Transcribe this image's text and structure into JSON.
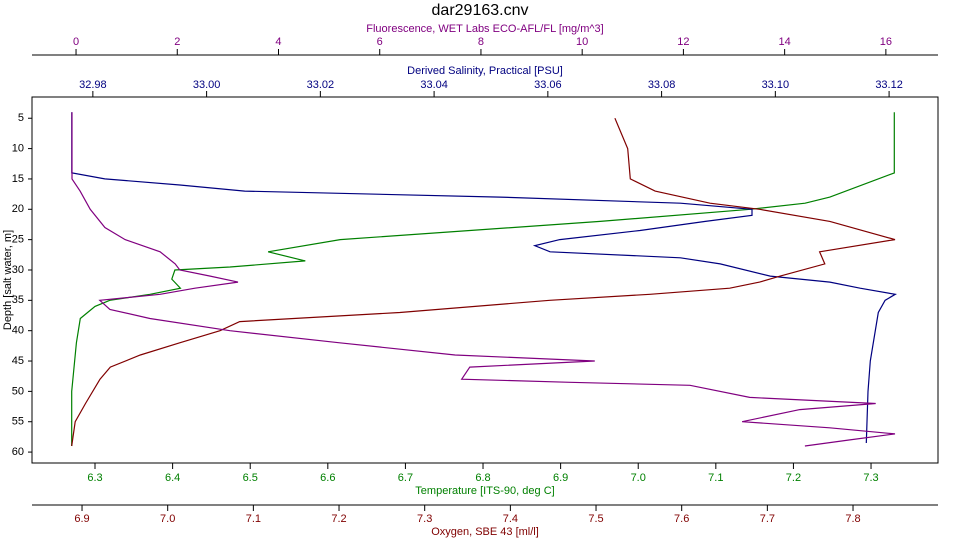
{
  "chart_data": {
    "type": "profile",
    "title": "dar29163.cnv",
    "y_label": "Depth [salt water, m]",
    "ylim": [
      1.5,
      61.8
    ],
    "yticks": [
      5,
      10,
      15,
      20,
      25,
      30,
      35,
      40,
      45,
      50,
      55,
      60
    ],
    "x_axes": [
      {
        "label": "Fluorescence, WET Labs ECO-AFL/FL [mg/m^3]",
        "color": "#800080",
        "position": "top-outer",
        "xlim": [
          -0.87,
          17.03
        ],
        "xticks": [
          0,
          2,
          4,
          6,
          8,
          10,
          12,
          14,
          16
        ]
      },
      {
        "label": "Derived Salinity, Practical [PSU]",
        "color": "#000080",
        "position": "top-inner",
        "xlim": [
          32.9693,
          33.1286
        ],
        "xticks": [
          32.98,
          {
            "value": 33.0,
            "label": "33.00"
          },
          33.02,
          33.04,
          33.06,
          33.08,
          {
            "value": 33.1,
            "label": "33.10"
          },
          33.12
        ]
      },
      {
        "label": "Temperature [ITS-90, deg C]",
        "color": "#008000",
        "position": "bottom-inner",
        "xlim": [
          6.2188,
          7.3863
        ],
        "xticks": [
          6.3,
          6.4,
          6.5,
          6.6,
          6.7,
          6.8,
          6.9,
          {
            "value": 7.0,
            "label": "7.0"
          },
          7.1,
          7.2,
          7.3
        ]
      },
      {
        "label": "Oxygen, SBE 43 [ml/l]",
        "color": "#800000",
        "position": "bottom-outer",
        "xlim": [
          6.8416,
          7.8992
        ],
        "xticks": [
          6.9,
          {
            "value": 7.0,
            "label": "7.0"
          },
          7.1,
          7.2,
          7.3,
          7.4,
          7.5,
          7.6,
          7.7,
          7.8
        ]
      }
    ],
    "series": [
      {
        "axis": 2,
        "color": "#008000",
        "depth": [
          4,
          14,
          18,
          19,
          20,
          22,
          25,
          27,
          28.5,
          29.5,
          30,
          31.5,
          33,
          34,
          35,
          36,
          38,
          42,
          50,
          59
        ],
        "values": [
          7.33,
          7.33,
          7.247,
          7.215,
          7.144,
          6.951,
          6.616,
          6.523,
          6.571,
          6.474,
          6.403,
          6.399,
          6.41,
          6.371,
          6.319,
          6.3,
          6.281,
          6.276,
          6.27,
          6.27
        ]
      },
      {
        "axis": 1,
        "color": "#000080",
        "depth": [
          4,
          14,
          15,
          16,
          17,
          18,
          19,
          20,
          21,
          22,
          23.5,
          25,
          26,
          27,
          28,
          29,
          31,
          32,
          33,
          34,
          35,
          37,
          45,
          50,
          58.5
        ],
        "values": [
          32.9763,
          32.9763,
          32.9821,
          32.9953,
          33.0067,
          33.0516,
          33.0833,
          33.0959,
          33.0959,
          33.0877,
          33.0762,
          33.0621,
          33.0577,
          33.0604,
          33.0833,
          33.0903,
          33.0991,
          33.1096,
          33.1149,
          33.1211,
          33.1193,
          33.1181,
          33.1167,
          33.1163,
          33.116
        ]
      },
      {
        "axis": 3,
        "color": "#800000",
        "depth": [
          5,
          10,
          15,
          17,
          19,
          20,
          22,
          25,
          27,
          29,
          31,
          32,
          33,
          34,
          35,
          37,
          38.5,
          40,
          42,
          44,
          46,
          48,
          52,
          55,
          59
        ],
        "values": [
          7.522,
          7.537,
          7.54,
          7.569,
          7.633,
          7.691,
          7.773,
          7.849,
          7.761,
          7.767,
          7.715,
          7.691,
          7.656,
          7.563,
          7.446,
          7.271,
          7.084,
          7.061,
          7.014,
          6.968,
          6.933,
          6.921,
          6.904,
          6.892,
          6.888
        ]
      },
      {
        "axis": 0,
        "color": "#800080",
        "depth": [
          4,
          15,
          17,
          20,
          23,
          25,
          27,
          29,
          30,
          31,
          32,
          33,
          34,
          35,
          36.5,
          38,
          40,
          42,
          44,
          45,
          46,
          48,
          48.5,
          49,
          51,
          52,
          53,
          55,
          56,
          57,
          58,
          59
        ],
        "values": [
          -0.08,
          -0.08,
          0.08,
          0.28,
          0.57,
          0.97,
          1.66,
          1.96,
          2.05,
          2.65,
          3.2,
          2.35,
          1.66,
          0.47,
          0.67,
          1.46,
          3.04,
          5.21,
          7.49,
          10.25,
          7.78,
          7.62,
          9.76,
          12.13,
          13.31,
          15.8,
          14.3,
          13.16,
          14.89,
          16.18,
          15.29,
          14.4
        ]
      }
    ]
  }
}
